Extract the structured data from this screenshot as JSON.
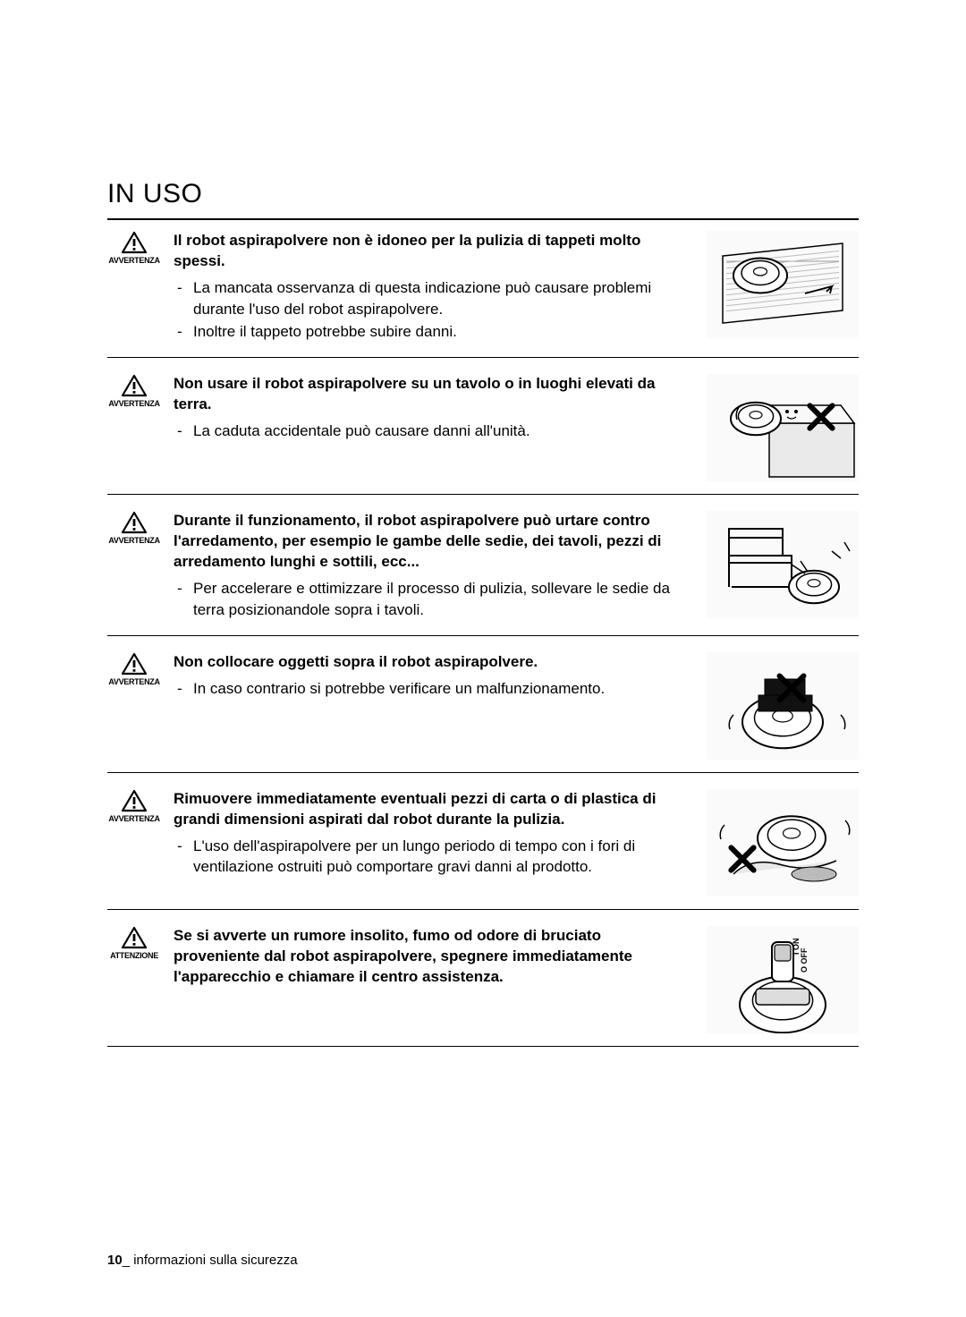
{
  "section_title": "IN USO",
  "footer": {
    "page_number": "10",
    "separator": "_",
    "label": "informazioni sulla sicurezza"
  },
  "icon_labels": {
    "avvertenza": "AVVERTENZA",
    "attenzione": "ATTENZIONE"
  },
  "warnings": [
    {
      "label_key": "avvertenza",
      "title": "Il robot aspirapolvere non è idoneo per la pulizia di tappeti molto spessi.",
      "items": [
        "La mancata osservanza di questa indicazione può causare problemi durante l'uso del robot aspirapolvere.",
        "Inoltre il tappeto potrebbe subire danni."
      ]
    },
    {
      "label_key": "avvertenza",
      "title": "Non usare il robot aspirapolvere su un tavolo o in luoghi elevati da terra.",
      "items": [
        "La caduta accidentale può causare danni all'unità."
      ]
    },
    {
      "label_key": "avvertenza",
      "title": "Durante il funzionamento, il robot aspirapolvere può urtare contro l'arredamento, per esempio le gambe delle sedie, dei tavoli, pezzi di arredamento lunghi e sottili, ecc...",
      "items": [
        "Per accelerare e ottimizzare il processo di pulizia, sollevare le sedie da terra posizionandole sopra i tavoli."
      ]
    },
    {
      "label_key": "avvertenza",
      "title": "Non collocare oggetti sopra il robot aspirapolvere.",
      "items": [
        "In caso contrario si potrebbe verificare un malfunzionamento."
      ]
    },
    {
      "label_key": "avvertenza",
      "title": "Rimuovere immediatamente eventuali pezzi di carta o di plastica di grandi dimensioni aspirati dal robot durante la pulizia.",
      "items": [
        "L'uso dell'aspirapolvere per un lungo periodo di tempo con i fori di ventilazione ostruiti può comportare gravi danni al prodotto."
      ]
    },
    {
      "label_key": "attenzione",
      "title": "Se si avverte un rumore insolito, fumo od odore di bruciato proveniente dal robot aspirapolvere, spegnere immediatamente l'apparecchio e chiamare il centro assistenza.",
      "items": []
    }
  ],
  "illustration_style": {
    "stroke": "#000000",
    "fill": "#ffffff",
    "cross_color": "#000000",
    "background": "#fafafa"
  }
}
